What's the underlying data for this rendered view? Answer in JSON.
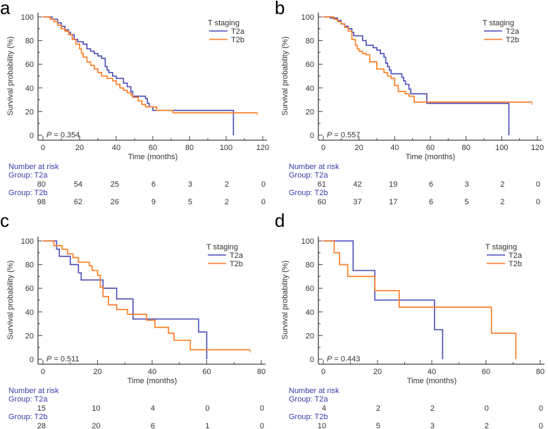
{
  "colors": {
    "T2a": "#4b4bb8",
    "T2b": "#ff7a1f",
    "axis": "#444444",
    "risk_header": "#3b3bab"
  },
  "chart_data": [
    {
      "panel": "a",
      "type": "line",
      "subtype": "kaplan-meier-step",
      "xlabel": "Time (months)",
      "ylabel": "Survival probability (%)",
      "xlim": [
        0,
        120
      ],
      "ylim": [
        0,
        100
      ],
      "xticks": [
        0,
        20,
        40,
        60,
        80,
        100,
        120
      ],
      "yticks": [
        0,
        20,
        40,
        60,
        80,
        100
      ],
      "legend_title": "T staging",
      "legend_position": "top-right",
      "p_label": "P",
      "p_value": "= 0.354",
      "series": [
        {
          "name": "T2a",
          "steps": [
            [
              0,
              100
            ],
            [
              5,
              98
            ],
            [
              8,
              95
            ],
            [
              10,
              92
            ],
            [
              12,
              89
            ],
            [
              14,
              87
            ],
            [
              15,
              85
            ],
            [
              17,
              81
            ],
            [
              19,
              79
            ],
            [
              22,
              77
            ],
            [
              24,
              73
            ],
            [
              26,
              71
            ],
            [
              28,
              69
            ],
            [
              30,
              67
            ],
            [
              32,
              65
            ],
            [
              34,
              58
            ],
            [
              35,
              55
            ],
            [
              36,
              53
            ],
            [
              38,
              50
            ],
            [
              40,
              48
            ],
            [
              44,
              44
            ],
            [
              46,
              41
            ],
            [
              48,
              37
            ],
            [
              49,
              33
            ],
            [
              56,
              31
            ],
            [
              57,
              27
            ],
            [
              58,
              24
            ],
            [
              60,
              21
            ],
            [
              104,
              0
            ]
          ],
          "end": 104
        },
        {
          "name": "T2b",
          "steps": [
            [
              0,
              100
            ],
            [
              4,
              98
            ],
            [
              6,
              96
            ],
            [
              8,
              93
            ],
            [
              10,
              90
            ],
            [
              12,
              88
            ],
            [
              14,
              85
            ],
            [
              16,
              81
            ],
            [
              18,
              77
            ],
            [
              20,
              73
            ],
            [
              21,
              69
            ],
            [
              22,
              66
            ],
            [
              24,
              62
            ],
            [
              26,
              59
            ],
            [
              28,
              56
            ],
            [
              30,
              53
            ],
            [
              32,
              50
            ],
            [
              35,
              48
            ],
            [
              38,
              46
            ],
            [
              40,
              43
            ],
            [
              42,
              40
            ],
            [
              44,
              38
            ],
            [
              46,
              36
            ],
            [
              48,
              34
            ],
            [
              49,
              32
            ],
            [
              52,
              29
            ],
            [
              54,
              26
            ],
            [
              56,
              24
            ],
            [
              62,
              21
            ],
            [
              71,
              19
            ]
          ],
          "end": 117
        }
      ],
      "risk_title": "Number at risk",
      "risk": [
        {
          "label": "Group: T2a",
          "values": [
            "80",
            "54",
            "25",
            "6",
            "3",
            "2",
            "0"
          ]
        },
        {
          "label": "Group: T2b",
          "values": [
            "98",
            "62",
            "26",
            "9",
            "5",
            "2",
            "0"
          ]
        }
      ]
    },
    {
      "panel": "b",
      "type": "line",
      "subtype": "kaplan-meier-step",
      "xlabel": "Time (months)",
      "ylabel": "Survival probability (%)",
      "xlim": [
        0,
        120
      ],
      "ylim": [
        0,
        100
      ],
      "xticks": [
        0,
        20,
        40,
        60,
        80,
        100,
        120
      ],
      "yticks": [
        0,
        20,
        40,
        60,
        80,
        100
      ],
      "legend_title": "T staging",
      "legend_position": "top-right",
      "p_label": "P",
      "p_value": "= 0.557",
      "series": [
        {
          "name": "T2a",
          "steps": [
            [
              0,
              100
            ],
            [
              4,
              99
            ],
            [
              8,
              97
            ],
            [
              10,
              94
            ],
            [
              12,
              92
            ],
            [
              14,
              90
            ],
            [
              16,
              87
            ],
            [
              17,
              84
            ],
            [
              22,
              80
            ],
            [
              24,
              76
            ],
            [
              28,
              74
            ],
            [
              30,
              72
            ],
            [
              32,
              69
            ],
            [
              34,
              66
            ],
            [
              35,
              61
            ],
            [
              36,
              58
            ],
            [
              37,
              55
            ],
            [
              38,
              52
            ],
            [
              44,
              49
            ],
            [
              45,
              46
            ],
            [
              46,
              43
            ],
            [
              48,
              39
            ],
            [
              49,
              35
            ],
            [
              58,
              27
            ],
            [
              104,
              0
            ]
          ],
          "end": 104
        },
        {
          "name": "T2b",
          "steps": [
            [
              0,
              100
            ],
            [
              6,
              98
            ],
            [
              8,
              96
            ],
            [
              10,
              94
            ],
            [
              12,
              91
            ],
            [
              14,
              88
            ],
            [
              16,
              81
            ],
            [
              18,
              76
            ],
            [
              19,
              73
            ],
            [
              20,
              71
            ],
            [
              22,
              69
            ],
            [
              24,
              68
            ],
            [
              26,
              62
            ],
            [
              30,
              56
            ],
            [
              34,
              53
            ],
            [
              36,
              50
            ],
            [
              38,
              48
            ],
            [
              40,
              42
            ],
            [
              42,
              37
            ],
            [
              46,
              35
            ],
            [
              48,
              33
            ],
            [
              51,
              28
            ]
          ],
          "end": 117
        }
      ],
      "risk_title": "Number at risk",
      "risk": [
        {
          "label": "Group: T2a",
          "values": [
            "61",
            "42",
            "19",
            "6",
            "3",
            "2",
            "0"
          ]
        },
        {
          "label": "Group: T2b",
          "values": [
            "60",
            "37",
            "17",
            "6",
            "5",
            "2",
            "0"
          ]
        }
      ]
    },
    {
      "panel": "c",
      "type": "line",
      "subtype": "kaplan-meier-step",
      "xlabel": "Time (months)",
      "ylabel": "Survival probability (%)",
      "xlim": [
        0,
        80
      ],
      "ylim": [
        0,
        100
      ],
      "xticks": [
        0,
        20,
        40,
        60,
        80
      ],
      "yticks": [
        0,
        20,
        40,
        60,
        80,
        100
      ],
      "legend_title": "T staging",
      "legend_position": "top-right",
      "p_label": "P",
      "p_value": "= 0.511",
      "series": [
        {
          "name": "T2a",
          "steps": [
            [
              0,
              100
            ],
            [
              5,
              93
            ],
            [
              6,
              87
            ],
            [
              10,
              80
            ],
            [
              13,
              73
            ],
            [
              14,
              67
            ],
            [
              22,
              60
            ],
            [
              27,
              51
            ],
            [
              33,
              34
            ],
            [
              57,
              23
            ],
            [
              60,
              0
            ]
          ],
          "end": 60
        },
        {
          "name": "T2b",
          "steps": [
            [
              0,
              100
            ],
            [
              4,
              96
            ],
            [
              7,
              93
            ],
            [
              9,
              89
            ],
            [
              11,
              86
            ],
            [
              13,
              82
            ],
            [
              17,
              79
            ],
            [
              18,
              75
            ],
            [
              20,
              71
            ],
            [
              21,
              61
            ],
            [
              22,
              53
            ],
            [
              24,
              46
            ],
            [
              27,
              42
            ],
            [
              31,
              38
            ],
            [
              38,
              33
            ],
            [
              41,
              27
            ],
            [
              46,
              22
            ],
            [
              48,
              16
            ],
            [
              54,
              8
            ]
          ],
          "end": 76
        }
      ],
      "risk_title": "Number at risk",
      "risk": [
        {
          "label": "Group: T2a",
          "values": [
            "15",
            "10",
            "4",
            "0",
            "0"
          ]
        },
        {
          "label": "Group: T2b",
          "values": [
            "28",
            "20",
            "6",
            "1",
            "0"
          ]
        }
      ]
    },
    {
      "panel": "d",
      "type": "line",
      "subtype": "kaplan-meier-step",
      "xlabel": "Time (months)",
      "ylabel": "Survival probability (%)",
      "xlim": [
        0,
        80
      ],
      "ylim": [
        0,
        100
      ],
      "xticks": [
        0,
        20,
        40,
        60,
        80
      ],
      "yticks": [
        0,
        20,
        40,
        60,
        80,
        100
      ],
      "legend_title": "T staging",
      "legend_position": "top-right",
      "p_label": "P",
      "p_value": "= 0.443",
      "series": [
        {
          "name": "T2a",
          "steps": [
            [
              0,
              100
            ],
            [
              11,
              75
            ],
            [
              19,
              50
            ],
            [
              41,
              25
            ],
            [
              44,
              0
            ]
          ],
          "end": 44
        },
        {
          "name": "T2b",
          "steps": [
            [
              0,
              100
            ],
            [
              4,
              90
            ],
            [
              6,
              80
            ],
            [
              9,
              70
            ],
            [
              19,
              58
            ],
            [
              28,
              44
            ],
            [
              62,
              22
            ],
            [
              71,
              0
            ]
          ],
          "end": 71
        }
      ],
      "risk_title": "Number at risk",
      "risk": [
        {
          "label": "Group: T2a",
          "values": [
            "4",
            "2",
            "2",
            "0",
            "0"
          ]
        },
        {
          "label": "Group: T2b",
          "values": [
            "10",
            "5",
            "3",
            "2",
            "0"
          ]
        }
      ]
    }
  ]
}
